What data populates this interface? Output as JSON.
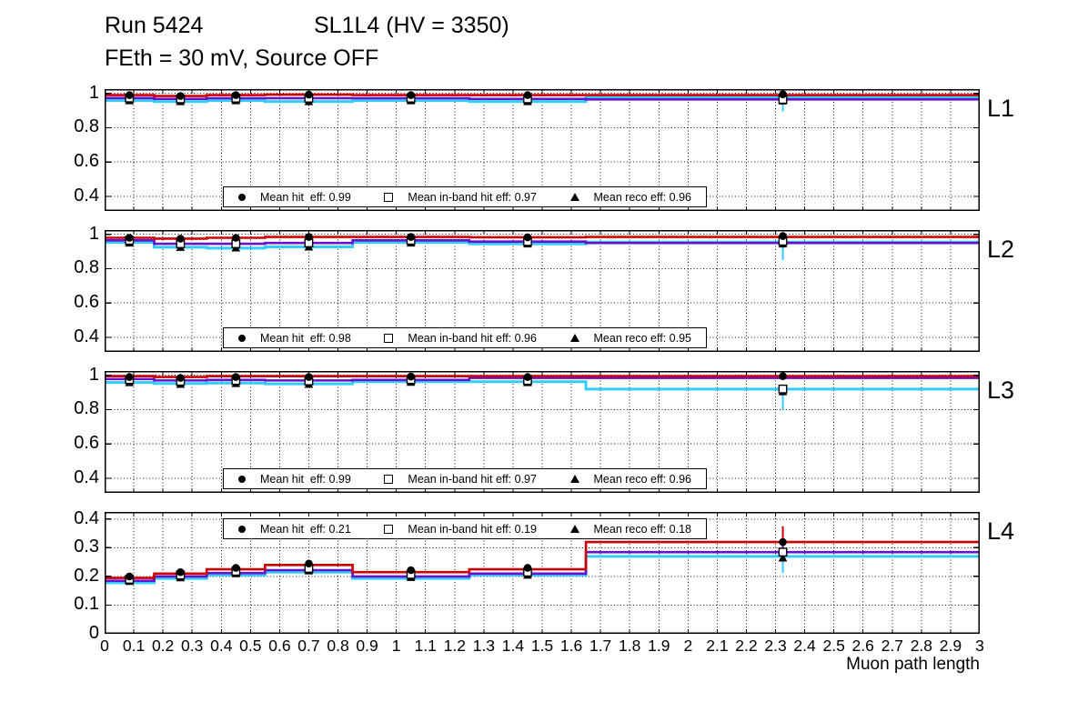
{
  "header": {
    "title_left": "Run 5424",
    "title_right": "SL1L4 (HV = 3350)",
    "subtitle": "FEth = 30 mV, Source OFF"
  },
  "chart_data": {
    "type": "line",
    "title": "Run 5424 SL1L4 (HV = 3350), FEth = 30 mV, Source OFF",
    "xlabel": "Muon path length",
    "xlim": [
      0,
      3
    ],
    "x_tick_step": 0.1,
    "x_tick_labels": [
      "0",
      "0.1",
      "0.2",
      "0.3",
      "0.4",
      "0.5",
      "0.6",
      "0.7",
      "0.8",
      "0.9",
      "1",
      "1.1",
      "1.2",
      "1.3",
      "1.4",
      "1.5",
      "1.6",
      "1.7",
      "1.8",
      "1.9",
      "2",
      "2.1",
      "2.2",
      "2.3",
      "2.4",
      "2.5",
      "2.6",
      "2.7",
      "2.8",
      "2.9",
      "3"
    ],
    "grid": true,
    "bin_edges": [
      0,
      0.17,
      0.35,
      0.55,
      0.85,
      1.25,
      1.65,
      3.0
    ],
    "bin_centers": [
      0.085,
      0.26,
      0.45,
      0.7,
      1.05,
      1.45,
      2.325
    ],
    "series_meta": [
      {
        "key": "hit",
        "name": "Mean hit eff",
        "color": "#cc0000",
        "marker": "circle"
      },
      {
        "key": "inband",
        "name": "Mean in-band hit eff",
        "color": "#6611cc",
        "marker": "square"
      },
      {
        "key": "reco",
        "name": "Mean reco eff",
        "color": "#33ccff",
        "marker": "triangle"
      }
    ],
    "panels": [
      {
        "label": "L1",
        "ylim": [
          0.315,
          1.025
        ],
        "ytick_values": [
          1,
          0.8,
          0.6,
          0.4
        ],
        "ytick_labels": [
          "1",
          "0.8",
          "0.6",
          "0.4"
        ],
        "legend_pos": "bottom",
        "legend": [
          {
            "marker": "circle",
            "label": "Mean hit  eff: 0.99"
          },
          {
            "marker": "square",
            "label": "Mean in-band hit eff: 0.97"
          },
          {
            "marker": "triangle",
            "label": "Mean reco eff: 0.96"
          }
        ],
        "lines": {
          "hit": [
            0.99,
            0.985,
            0.99,
            0.993,
            0.99,
            0.99,
            0.99
          ],
          "inband": [
            0.973,
            0.968,
            0.972,
            0.972,
            0.972,
            0.968,
            0.965
          ],
          "reco": [
            0.958,
            0.953,
            0.958,
            0.953,
            0.958,
            0.953,
            0.975
          ]
        },
        "points": {
          "hit": [
            0.99,
            0.985,
            0.99,
            0.993,
            0.99,
            0.99,
            0.995
          ],
          "inband": [
            0.973,
            0.968,
            0.972,
            0.972,
            0.972,
            0.968,
            0.965
          ],
          "reco": [
            0.958,
            0.953,
            0.958,
            0.953,
            0.958,
            0.953,
            0.957
          ]
        },
        "last_err": {
          "hit": [
            0.98,
            1.005
          ],
          "inband": [
            0.93,
            0.99
          ],
          "reco": [
            0.895,
            0.98
          ]
        }
      },
      {
        "label": "L2",
        "ylim": [
          0.315,
          1.025
        ],
        "ytick_values": [
          1,
          0.8,
          0.6,
          0.4
        ],
        "ytick_labels": [
          "1",
          "0.8",
          "0.6",
          "0.4"
        ],
        "legend_pos": "bottom",
        "legend": [
          {
            "marker": "circle",
            "label": "Mean hit  eff: 0.98"
          },
          {
            "marker": "square",
            "label": "Mean in-band hit eff: 0.96"
          },
          {
            "marker": "triangle",
            "label": "Mean reco eff: 0.95"
          }
        ],
        "lines": {
          "hit": [
            0.98,
            0.975,
            0.98,
            0.985,
            0.985,
            0.983,
            0.985
          ],
          "inband": [
            0.965,
            0.945,
            0.945,
            0.95,
            0.965,
            0.958,
            0.95
          ],
          "reco": [
            0.953,
            0.925,
            0.92,
            0.927,
            0.953,
            0.945,
            0.955
          ]
        },
        "points": {
          "hit": [
            0.98,
            0.975,
            0.98,
            0.985,
            0.985,
            0.983,
            0.99
          ],
          "inband": [
            0.965,
            0.945,
            0.945,
            0.95,
            0.965,
            0.958,
            0.96
          ],
          "reco": [
            0.95,
            0.925,
            0.922,
            0.927,
            0.95,
            0.945,
            0.945
          ]
        },
        "last_err": {
          "hit": [
            0.98,
            1.005
          ],
          "inband": [
            0.93,
            0.985
          ],
          "reco": [
            0.85,
            0.975
          ]
        }
      },
      {
        "label": "L3",
        "ylim": [
          0.315,
          1.025
        ],
        "ytick_values": [
          1,
          0.8,
          0.6,
          0.4
        ],
        "ytick_labels": [
          "1",
          "0.8",
          "0.6",
          "0.4"
        ],
        "legend_pos": "bottom",
        "legend": [
          {
            "marker": "circle",
            "label": "Mean hit  eff: 0.99"
          },
          {
            "marker": "square",
            "label": "Mean in-band hit eff: 0.97"
          },
          {
            "marker": "triangle",
            "label": "Mean reco eff: 0.96"
          }
        ],
        "lines": {
          "hit": [
            0.995,
            0.99,
            0.995,
            0.995,
            0.995,
            0.995,
            0.995
          ],
          "inband": [
            0.978,
            0.97,
            0.973,
            0.97,
            0.973,
            0.985,
            0.985
          ],
          "reco": [
            0.958,
            0.952,
            0.955,
            0.95,
            0.963,
            0.963,
            0.92
          ]
        },
        "points": {
          "hit": [
            0.99,
            0.985,
            0.99,
            0.99,
            0.993,
            0.99,
            0.995
          ],
          "inband": [
            0.975,
            0.965,
            0.97,
            0.967,
            0.975,
            0.97,
            0.92
          ],
          "reco": [
            0.958,
            0.948,
            0.953,
            0.948,
            0.96,
            0.958,
            0.905
          ]
        },
        "last_err": {
          "hit": [
            0.985,
            1.005
          ],
          "inband": [
            0.895,
            0.945
          ],
          "reco": [
            0.8,
            0.935
          ]
        }
      },
      {
        "label": "L4",
        "ylim": [
          0,
          0.425
        ],
        "ytick_values": [
          0.4,
          0.3,
          0.2,
          0.1,
          0
        ],
        "ytick_labels": [
          "0.4",
          "0.3",
          "0.2",
          "0.1",
          "0"
        ],
        "legend_pos": "top",
        "legend": [
          {
            "marker": "circle",
            "label": "Mean hit  eff: 0.21"
          },
          {
            "marker": "square",
            "label": "Mean in-band hit eff: 0.19"
          },
          {
            "marker": "triangle",
            "label": "Mean reco eff: 0.18"
          }
        ],
        "lines": {
          "hit": [
            0.195,
            0.21,
            0.225,
            0.24,
            0.215,
            0.225,
            0.32
          ],
          "inband": [
            0.185,
            0.2,
            0.212,
            0.222,
            0.2,
            0.21,
            0.285
          ],
          "reco": [
            0.178,
            0.193,
            0.205,
            0.215,
            0.193,
            0.205,
            0.27
          ]
        },
        "points": {
          "hit": [
            0.2,
            0.215,
            0.23,
            0.245,
            0.222,
            0.23,
            0.32
          ],
          "inband": [
            0.19,
            0.205,
            0.218,
            0.228,
            0.207,
            0.215,
            0.285
          ],
          "reco": [
            0.183,
            0.196,
            0.21,
            0.22,
            0.197,
            0.205,
            0.265
          ]
        },
        "last_err": {
          "hit": [
            0.262,
            0.375
          ],
          "inband": [
            0.262,
            0.315
          ],
          "reco": [
            0.212,
            0.3
          ]
        }
      }
    ]
  }
}
